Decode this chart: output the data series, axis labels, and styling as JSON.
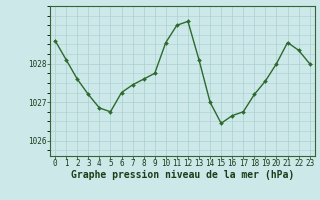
{
  "x": [
    0,
    1,
    2,
    3,
    4,
    5,
    6,
    7,
    8,
    9,
    10,
    11,
    12,
    13,
    14,
    15,
    16,
    17,
    18,
    19,
    20,
    21,
    22,
    23
  ],
  "y": [
    1028.6,
    1028.1,
    1027.6,
    1027.2,
    1026.85,
    1026.75,
    1027.25,
    1027.45,
    1027.6,
    1027.75,
    1028.55,
    1029.0,
    1029.1,
    1028.1,
    1027.0,
    1026.45,
    1026.65,
    1026.75,
    1027.2,
    1027.55,
    1028.0,
    1028.55,
    1028.35,
    1028.0
  ],
  "line_color": "#2d6a2d",
  "marker": "D",
  "marker_size": 2.0,
  "bg_color": "#cce8e8",
  "grid_color": "#aacfcf",
  "border_color": "#336633",
  "xlabel": "Graphe pression niveau de la mer (hPa)",
  "xlabel_fontsize": 7.0,
  "ytick_values": [
    1026,
    1027,
    1028
  ],
  "ytick_labels": [
    "1026",
    "1027",
    "1028"
  ],
  "ylim": [
    1025.6,
    1029.5
  ],
  "xlim": [
    -0.5,
    23.5
  ],
  "text_color": "#1a3d1a",
  "tick_fontsize": 5.5,
  "linewidth": 1.0
}
